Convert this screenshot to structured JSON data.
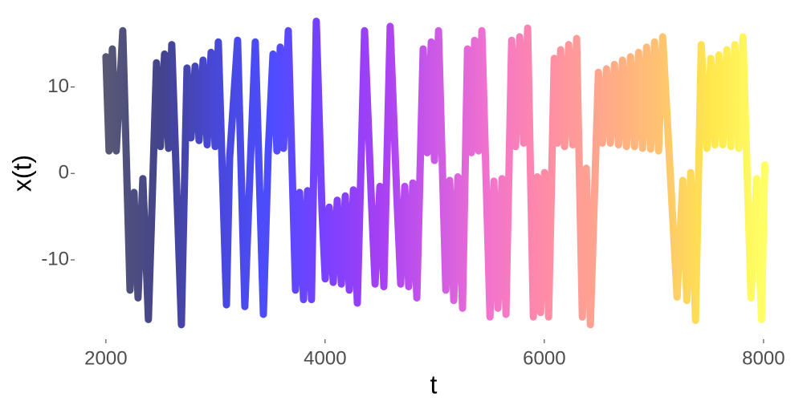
{
  "chart_data": {
    "type": "line",
    "x_label": "t",
    "y_label": "x(t)",
    "xlim": [
      1730,
      8250
    ],
    "ylim": [
      -18.9,
      18.2
    ],
    "xticks": [
      2000,
      4000,
      6000,
      8000
    ],
    "yticks": [
      -10,
      0,
      10
    ],
    "grid": false,
    "colors": [
      "#2e2e52",
      "#141470",
      "#1a1ad0",
      "#2020ff",
      "#5a10ff",
      "#9010f0",
      "#c030e0",
      "#f050c0",
      "#ff6f90",
      "#ff9070",
      "#ffb050",
      "#ffe020",
      "#ffff40"
    ],
    "x": [
      2000,
      2029,
      2059,
      2095,
      2154,
      2220,
      2257,
      2293,
      2337,
      2388,
      2462,
      2498,
      2535,
      2572,
      2601,
      2689,
      2740,
      2777,
      2814,
      2850,
      2887,
      2924,
      2960,
      2997,
      3026,
      3100,
      3129,
      3202,
      3268,
      3319,
      3363,
      3437,
      3481,
      3525,
      3561,
      3591,
      3620,
      3664,
      3730,
      3767,
      3803,
      3840,
      3876,
      3920,
      3972,
      4001,
      4038,
      4074,
      4111,
      4148,
      4184,
      4221,
      4258,
      4294,
      4360,
      4419,
      4456,
      4500,
      4536,
      4594,
      4653,
      4690,
      4727,
      4763,
      4800,
      4837,
      4895,
      4932,
      4969,
      4998,
      5035,
      5101,
      5137,
      5174,
      5211,
      5254,
      5299,
      5335,
      5364,
      5401,
      5430,
      5504,
      5540,
      5577,
      5614,
      5650,
      5702,
      5738,
      5775,
      5812,
      5848,
      5900,
      5936,
      5966,
      6002,
      6039,
      6090,
      6120,
      6149,
      6185,
      6222,
      6259,
      6295,
      6347,
      6383,
      6420,
      6493,
      6530,
      6567,
      6603,
      6640,
      6677,
      6713,
      6750,
      6786,
      6823,
      6860,
      6896,
      6933,
      6970,
      7006,
      7043,
      7080,
      7211,
      7263,
      7300,
      7336,
      7380,
      7432,
      7483,
      7519,
      7556,
      7593,
      7629,
      7666,
      7703,
      7739,
      7776,
      7813,
      7886,
      7937,
      7981,
      8011
    ],
    "series": [
      {
        "values": [
          13.5,
          2.6,
          14.4,
          2.6,
          16.5,
          -13.5,
          -2.2,
          -14.4,
          -0.6,
          -16.9,
          12.8,
          3.1,
          13.8,
          2.9,
          14.9,
          -17.5,
          12.2,
          4.1,
          12.4,
          3.8,
          13.1,
          3.3,
          14.0,
          3.1,
          15.2,
          -15.2,
          1.8,
          15.4,
          -15.4,
          1.5,
          15.2,
          -16.3,
          2.4,
          13.8,
          2.6,
          14.6,
          2.9,
          16.5,
          -13.5,
          -2.2,
          -14.6,
          -2.0,
          -14.6,
          17.6,
          -4.3,
          -12.2,
          -3.9,
          -12.6,
          -3.1,
          -12.8,
          -2.6,
          -13.5,
          -1.9,
          -15.0,
          16.5,
          -2.2,
          -12.8,
          -1.5,
          -13.1,
          17.0,
          -2.2,
          -12.8,
          -1.5,
          -13.1,
          -1.1,
          -14.4,
          14.4,
          2.4,
          15.2,
          1.5,
          16.5,
          -13.5,
          -0.8,
          -14.7,
          -0.4,
          -15.6,
          14.4,
          2.4,
          15.4,
          2.6,
          16.5,
          -16.6,
          -0.9,
          -15.6,
          -0.6,
          -16.3,
          15.4,
          3.1,
          15.8,
          3.5,
          16.8,
          -16.6,
          -0.4,
          -16.1,
          0.1,
          -16.6,
          13.3,
          3.5,
          14.3,
          3.1,
          14.9,
          3.3,
          15.6,
          -16.6,
          0.6,
          -17.5,
          11.7,
          3.5,
          12.1,
          3.5,
          12.6,
          3.3,
          13.1,
          3.1,
          13.5,
          3.1,
          14.0,
          2.9,
          14.6,
          2.8,
          15.2,
          2.6,
          15.8,
          -14.3,
          -0.8,
          -14.7,
          0.1,
          -17.0,
          14.9,
          2.9,
          13.3,
          3.3,
          13.7,
          3.3,
          14.3,
          3.1,
          14.9,
          2.9,
          15.8,
          -14.4,
          -0.6,
          -16.9,
          1.0
        ]
      }
    ]
  }
}
